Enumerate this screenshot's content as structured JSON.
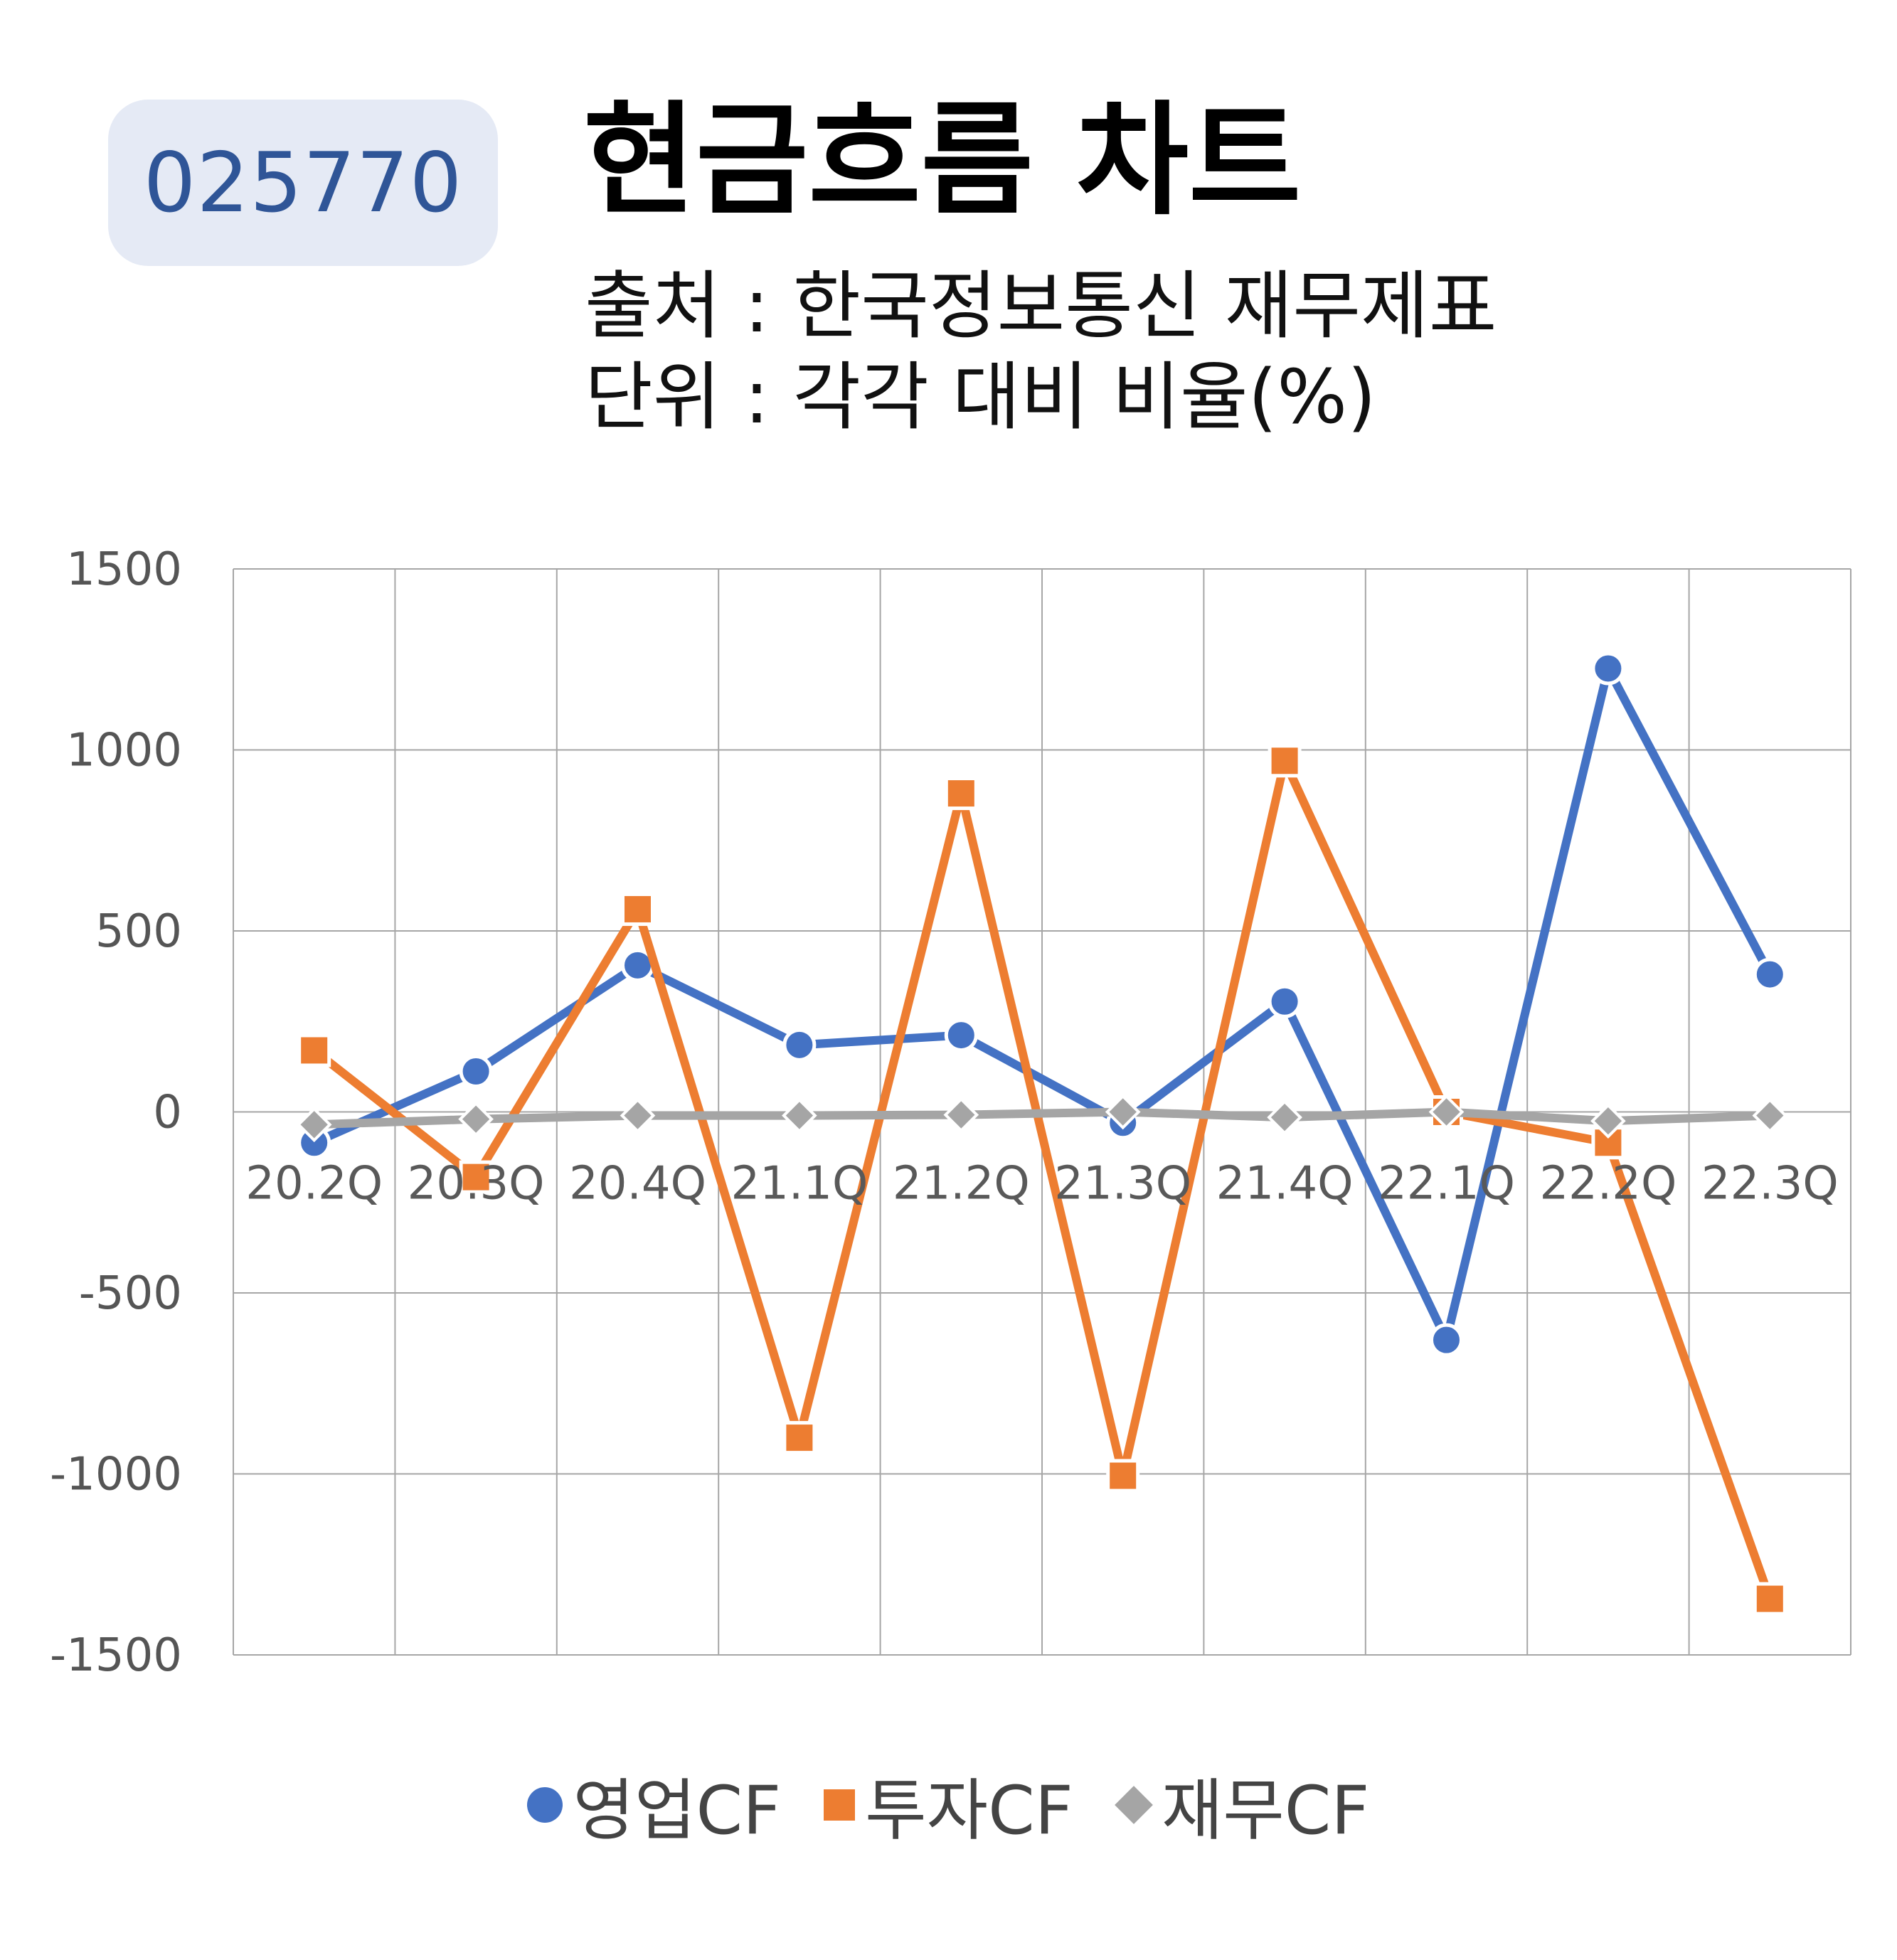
{
  "badge": "025770",
  "title": "현금흐름 차트",
  "source_line": "출처 : 한국정보통신 재무제표",
  "unit_line": "단위 : 각각 대비 비율(%)",
  "chart_data": {
    "type": "line",
    "categories": [
      "20.2Q",
      "20.3Q",
      "20.4Q",
      "21.1Q",
      "21.2Q",
      "21.3Q",
      "21.4Q",
      "22.1Q",
      "22.2Q",
      "22.3Q"
    ],
    "series": [
      {
        "name": "영업CF",
        "color": "#4472c4",
        "marker": "circle",
        "values": [
          -85,
          112,
          405,
          185,
          212,
          -30,
          305,
          -630,
          1225,
          380
        ]
      },
      {
        "name": "투자CF",
        "color": "#ed7d31",
        "marker": "square",
        "values": [
          170,
          -180,
          560,
          -900,
          880,
          -1005,
          970,
          0,
          -85,
          -1345
        ]
      },
      {
        "name": "재무CF",
        "color": "#a5a5a5",
        "marker": "diamond",
        "values": [
          -35,
          -20,
          -10,
          -10,
          -8,
          0,
          -15,
          0,
          -25,
          -10
        ]
      }
    ],
    "ylim": [
      -1500,
      1500
    ],
    "yticks": [
      "1500",
      "1000",
      "500",
      "0",
      "-500",
      "-1000",
      "-1500"
    ],
    "grid": true,
    "legend_position": "bottom"
  }
}
